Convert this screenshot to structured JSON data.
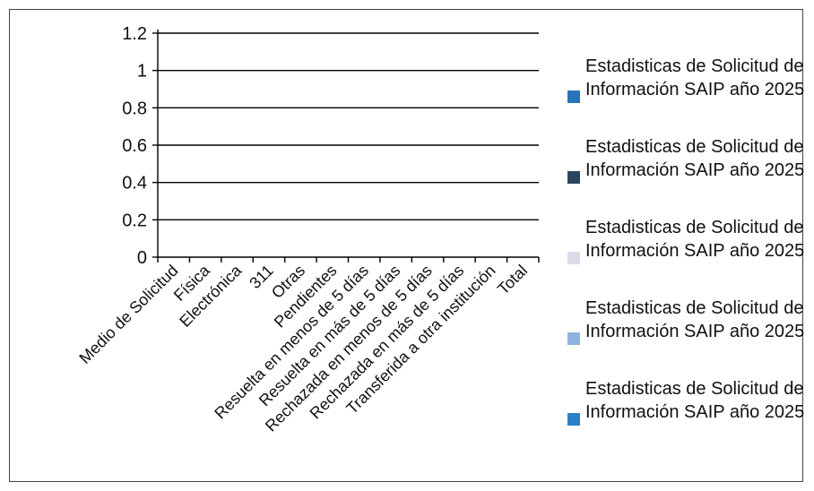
{
  "chart_data": {
    "type": "bar",
    "title": "",
    "xlabel": "",
    "ylabel": "",
    "categories": [
      "Medio de Solicitud",
      "Física",
      "Electrónica",
      "311",
      "Otras",
      "Pendientes",
      "Resuelta en menos de 5 días",
      "Resuelta en más de 5 días",
      "Rechazada en menos de 5 días",
      "Rechazada en más de 5 días",
      "Transferida a otra institución",
      "Total"
    ],
    "ylim": [
      0,
      1.2
    ],
    "yticks": [
      "0",
      "0.2",
      "0.4",
      "0.6",
      "0.8",
      "1",
      "1.2"
    ],
    "grid": true,
    "legend": "right",
    "series": [
      {
        "name": "Estadisticas de  Solicitud de Información SAIP año 2025",
        "color": "#2a73b8",
        "values": [
          0,
          0,
          0,
          0,
          0,
          0,
          0,
          0,
          0,
          0,
          0,
          0
        ]
      },
      {
        "name": "Estadisticas de  Solicitud de Información SAIP año 2025",
        "color": "#2d4660",
        "values": [
          0,
          0,
          0,
          0,
          0,
          0,
          0,
          0,
          0,
          0,
          0,
          0
        ]
      },
      {
        "name": "Estadisticas de  Solicitud de Información SAIP año 2025",
        "color": "#d9dbe8",
        "values": [
          0,
          0,
          0,
          0,
          0,
          0,
          0,
          0,
          0,
          0,
          0,
          0
        ]
      },
      {
        "name": "Estadisticas de  Solicitud de Información SAIP año 2025",
        "color": "#8fb3de",
        "values": [
          0,
          0,
          0,
          0,
          0,
          0,
          0,
          0,
          0,
          0,
          0,
          0
        ]
      },
      {
        "name": "Estadisticas de  Solicitud de Información SAIP año 2025",
        "color": "#2b7fc6",
        "values": [
          0,
          0,
          0,
          0,
          0,
          0,
          0,
          0,
          0,
          0,
          0,
          0
        ]
      }
    ]
  }
}
